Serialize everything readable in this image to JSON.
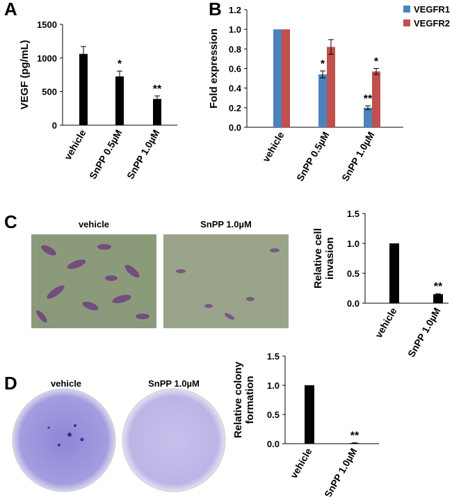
{
  "panels": [
    "A",
    "B",
    "C",
    "D"
  ],
  "images": [
    {
      "caption": "vehicle"
    },
    {
      "caption": "SnPP 1.0µM"
    },
    {
      "caption": "vehicle"
    },
    {
      "caption": "SnPP 1.0µM"
    }
  ],
  "chart_data": [
    {
      "type": "bar",
      "ylabel": [
        "VEGF (pg/mL)"
      ],
      "categories": [
        "vehicle",
        "SnPP 0.5µM",
        "SnPP 1.0µM"
      ],
      "values": [
        1060,
        725,
        390
      ],
      "errors": [
        110,
        80,
        45
      ],
      "annotations": [
        null,
        "*",
        "**"
      ],
      "color": "#000000",
      "ylim": [
        0,
        1500
      ],
      "yticks": [
        0,
        500,
        1000,
        1500
      ]
    },
    {
      "type": "grouped-bar",
      "ylabel": [
        "Fold expression"
      ],
      "categories": [
        "vehicle",
        "SnPP 0.5µM",
        "SnPP 1.0µM"
      ],
      "series": [
        {
          "name": "VEGFR1",
          "color": "#4f81bd",
          "values": [
            1.0,
            0.54,
            0.2
          ],
          "errors": [
            0,
            0.035,
            0.02
          ],
          "annotations": [
            null,
            "*",
            "**"
          ]
        },
        {
          "name": "VEGFR2",
          "color": "#c0504d",
          "values": [
            1.0,
            0.82,
            0.57
          ],
          "errors": [
            0,
            0.075,
            0.03
          ],
          "annotations": [
            null,
            null,
            "*"
          ]
        }
      ],
      "legend": "upper right",
      "ylim": [
        0,
        1.2
      ],
      "yticks": [
        {
          "value": 0,
          "label": "0.0"
        },
        0.2,
        0.4,
        0.6,
        0.8,
        {
          "value": 1,
          "label": "1.0"
        },
        1.2
      ]
    },
    {
      "type": "bar",
      "ylabel": [
        "Relative cell",
        "invasion"
      ],
      "categories": [
        "vehicle",
        "SnPP 1.0µM"
      ],
      "values": [
        1.0,
        0.15
      ],
      "errors": [
        0,
        0.01
      ],
      "annotations": [
        null,
        "**"
      ],
      "color": "#000000",
      "ylim": [
        0,
        1.5
      ],
      "yticks": [
        {
          "value": 0,
          "label": "0.0"
        },
        0.5,
        {
          "value": 1,
          "label": "1.0"
        },
        1.5
      ]
    },
    {
      "type": "bar",
      "ylabel": [
        "Relative colony",
        "formation"
      ],
      "categories": [
        "vehicle",
        "SnPP 1.0µM"
      ],
      "values": [
        1.0,
        0.01
      ],
      "errors": [
        0,
        0.005
      ],
      "annotations": [
        null,
        "**"
      ],
      "color": "#000000",
      "ylim": [
        0,
        1.5
      ],
      "yticks": [
        {
          "value": 0,
          "label": "0.0"
        },
        0.5,
        {
          "value": 1,
          "label": "1.0"
        },
        1.5
      ]
    }
  ]
}
